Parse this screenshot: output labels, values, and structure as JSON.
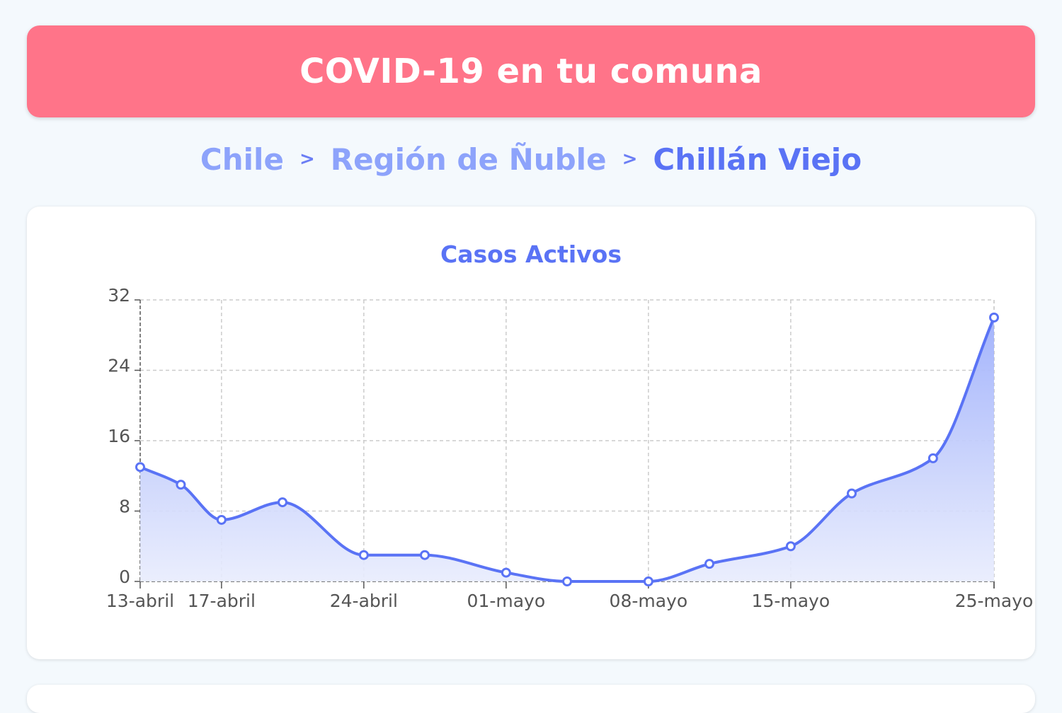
{
  "header": {
    "title": "COVID-19 en tu comuna"
  },
  "breadcrumb": {
    "items": [
      "Chile",
      "Región de Ñuble",
      "Chillán Viejo"
    ],
    "separator": ">"
  },
  "colors": {
    "header_bg": "#ff7489",
    "accent": "#5a73f5",
    "link": "#8da3fb",
    "line": "#5a73f5",
    "area_top": "#9fb0fb",
    "area_bottom": "#e8ecfd"
  },
  "chart_data": {
    "type": "area",
    "title": "Casos Activos",
    "xlabel": "",
    "ylabel": "",
    "x": [
      "13-abril",
      "15-abril",
      "17-abril",
      "20-abril",
      "24-abril",
      "27-abril",
      "01-mayo",
      "04-mayo",
      "08-mayo",
      "11-mayo",
      "15-mayo",
      "18-mayo",
      "22-mayo",
      "25-mayo"
    ],
    "x_tick_labels": [
      "13-abril",
      "17-abril",
      "24-abril",
      "01-mayo",
      "08-mayo",
      "15-mayo",
      "25-mayo"
    ],
    "series": [
      {
        "values": [
          13,
          11,
          7,
          9,
          3,
          3,
          1,
          0,
          0,
          2,
          4,
          10,
          14,
          30
        ]
      }
    ],
    "ylim": [
      0,
      32
    ],
    "yticks": [
      0,
      8,
      16,
      24,
      32
    ],
    "grid": true,
    "legend": "none",
    "smooth": true
  }
}
